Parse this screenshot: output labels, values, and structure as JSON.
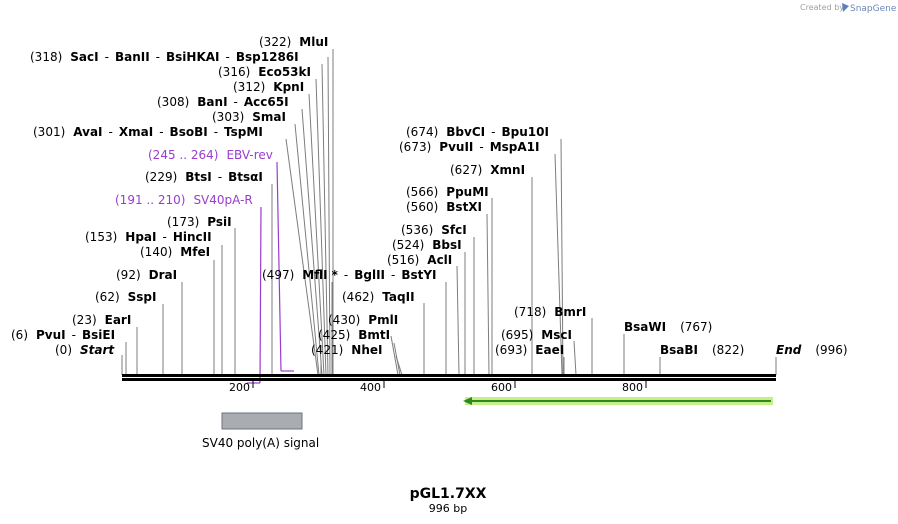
{
  "credit": {
    "prefix": "Created by",
    "brand": "SnapGene"
  },
  "sites": [
    {
      "pos": "(322)",
      "name": "MluI"
    },
    {
      "pos": "(318)",
      "name": "SacI",
      "rest": [
        "BanII",
        "BsiHKAI",
        "Bsp1286I"
      ]
    },
    {
      "pos": "(316)",
      "name": "Eco53kI"
    },
    {
      "pos": "(312)",
      "name": "KpnI"
    },
    {
      "pos": "(308)",
      "name": "BanI",
      "rest": [
        "Acc65I"
      ]
    },
    {
      "pos": "(303)",
      "name": "SmaI"
    },
    {
      "pos": "(301)",
      "name": "AvaI",
      "rest": [
        "XmaI",
        "BsoBI",
        "TspMI"
      ]
    },
    {
      "pos": "(229)",
      "name": "BtsI",
      "rest": [
        "BtsαI"
      ]
    },
    {
      "pos": "(173)",
      "name": "PsiI"
    },
    {
      "pos": "(153)",
      "name": "HpaI",
      "rest": [
        "HincII"
      ]
    },
    {
      "pos": "(140)",
      "name": "MfeI"
    },
    {
      "pos": "(92)",
      "name": "DraI"
    },
    {
      "pos": "(62)",
      "name": "SspI"
    },
    {
      "pos": "(23)",
      "name": "EarI"
    },
    {
      "pos": "(6)",
      "name": "PvuI",
      "rest": [
        "BsiEI"
      ]
    },
    {
      "pos": "(0)",
      "name": "Start"
    },
    {
      "pos": "(674)",
      "name": "BbvCI",
      "rest": [
        "Bpu10I"
      ]
    },
    {
      "pos": "(673)",
      "name": "PvuII",
      "rest": [
        "MspA1I"
      ]
    },
    {
      "pos": "(627)",
      "name": "XmnI"
    },
    {
      "pos": "(566)",
      "name": "PpuMI"
    },
    {
      "pos": "(560)",
      "name": "BstXI"
    },
    {
      "pos": "(536)",
      "name": "SfcI"
    },
    {
      "pos": "(524)",
      "name": "BbsI"
    },
    {
      "pos": "(516)",
      "name": "AclI"
    },
    {
      "pos": "(497)",
      "name": "MflI",
      "star": "*",
      "rest": [
        "BglII",
        "BstYI"
      ]
    },
    {
      "pos": "(462)",
      "name": "TaqII"
    },
    {
      "pos": "(430)",
      "name": "PmlI"
    },
    {
      "pos": "(425)",
      "name": "BmtI"
    },
    {
      "pos": "(421)",
      "name": "NheI"
    },
    {
      "pos": "(718)",
      "name": "BmrI"
    },
    {
      "pos": "(695)",
      "name": "MscI"
    },
    {
      "pos": "(693)",
      "name": "EaeI"
    },
    {
      "pos": "(767)",
      "name": "BsaWI"
    },
    {
      "pos": "(822)",
      "name": "BsaBI"
    },
    {
      "pos": "(996)",
      "name": "End"
    }
  ],
  "primers": [
    {
      "range": "(245 .. 264)",
      "name": "EBV-rev"
    },
    {
      "range": "(191 .. 210)",
      "name": "SV40pA-R"
    }
  ],
  "ruler": [
    "200",
    "400",
    "600",
    "800"
  ],
  "features": [
    {
      "name": "SV40 poly(A) signal"
    }
  ],
  "colors": {
    "primer": "#9a3ccf",
    "feature_box": "#a9adb2",
    "orf_arrow": "#2a8a1e",
    "orf_glow": "#c8ee88"
  },
  "plasmid": {
    "name": "pGL1.7XX",
    "length": "996 bp"
  }
}
